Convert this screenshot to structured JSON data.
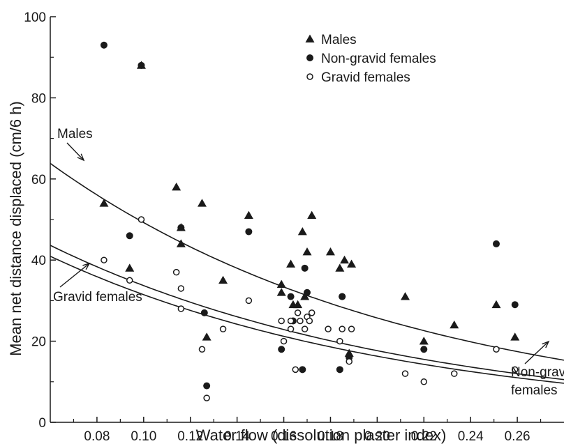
{
  "chart_data": {
    "type": "scatter",
    "title": "",
    "xlabel": "Water flow (dissolution plaster index)",
    "ylabel": "Mean net distance displaced (cm/6 h)",
    "xlim": [
      0.06,
      0.28
    ],
    "ylim": [
      0,
      100
    ],
    "xticks": [
      "0.08",
      "0.10",
      "0.12",
      "0.14",
      "0.16",
      "0.18",
      "0.20",
      "0.22",
      "0.24",
      "0.26"
    ],
    "yticks": [
      "0",
      "20",
      "40",
      "60",
      "80",
      "100"
    ],
    "grid": false,
    "legend_position": "top-right",
    "series": [
      {
        "name": "Males",
        "marker": "filled-triangle",
        "x": [
          0.083,
          0.094,
          0.099,
          0.114,
          0.116,
          0.116,
          0.125,
          0.127,
          0.134,
          0.145,
          0.159,
          0.159,
          0.163,
          0.164,
          0.166,
          0.168,
          0.169,
          0.17,
          0.172,
          0.18,
          0.184,
          0.186,
          0.188,
          0.189,
          0.212,
          0.22,
          0.233,
          0.251,
          0.259
        ],
        "y": [
          54,
          38,
          88,
          58,
          48,
          44,
          54,
          21,
          35,
          51,
          34,
          32,
          39,
          29,
          29,
          47,
          31,
          42,
          51,
          42,
          38,
          40,
          17,
          39,
          31,
          20,
          24,
          29,
          21
        ]
      },
      {
        "name": "Non-gravid females",
        "marker": "filled-circle",
        "x": [
          0.083,
          0.094,
          0.099,
          0.116,
          0.126,
          0.127,
          0.145,
          0.159,
          0.163,
          0.164,
          0.168,
          0.169,
          0.17,
          0.184,
          0.185,
          0.185,
          0.188,
          0.22,
          0.251,
          0.259
        ],
        "y": [
          93,
          46,
          88,
          48,
          27,
          9,
          47,
          18,
          31,
          25,
          13,
          38,
          32,
          13,
          31,
          31,
          16,
          18,
          44,
          29
        ]
      },
      {
        "name": "Gravid females",
        "marker": "open-circle",
        "x": [
          0.083,
          0.094,
          0.099,
          0.114,
          0.116,
          0.116,
          0.125,
          0.127,
          0.134,
          0.145,
          0.159,
          0.16,
          0.163,
          0.163,
          0.165,
          0.166,
          0.167,
          0.169,
          0.17,
          0.171,
          0.172,
          0.179,
          0.184,
          0.185,
          0.188,
          0.189,
          0.212,
          0.22,
          0.233,
          0.251,
          0.259
        ],
        "y": [
          40,
          35,
          50,
          37,
          33,
          28,
          18,
          6,
          23,
          30,
          25,
          20,
          23,
          25,
          13,
          27,
          25,
          23,
          26,
          25,
          27,
          23,
          20,
          23,
          15,
          23,
          12,
          10,
          12,
          18,
          13
        ]
      }
    ],
    "curves": [
      {
        "label": "Males",
        "a": 94.24,
        "b": -6.49
      },
      {
        "label": "Non-gravid females",
        "a": 64.3,
        "b": -6.46
      },
      {
        "label": "Gravid females",
        "a": 60.76,
        "b": -6.58
      }
    ],
    "annotations": [
      {
        "text": "Males"
      },
      {
        "text": "Gravid females"
      },
      {
        "text": "Non-gravid",
        "text2": "females"
      }
    ]
  }
}
